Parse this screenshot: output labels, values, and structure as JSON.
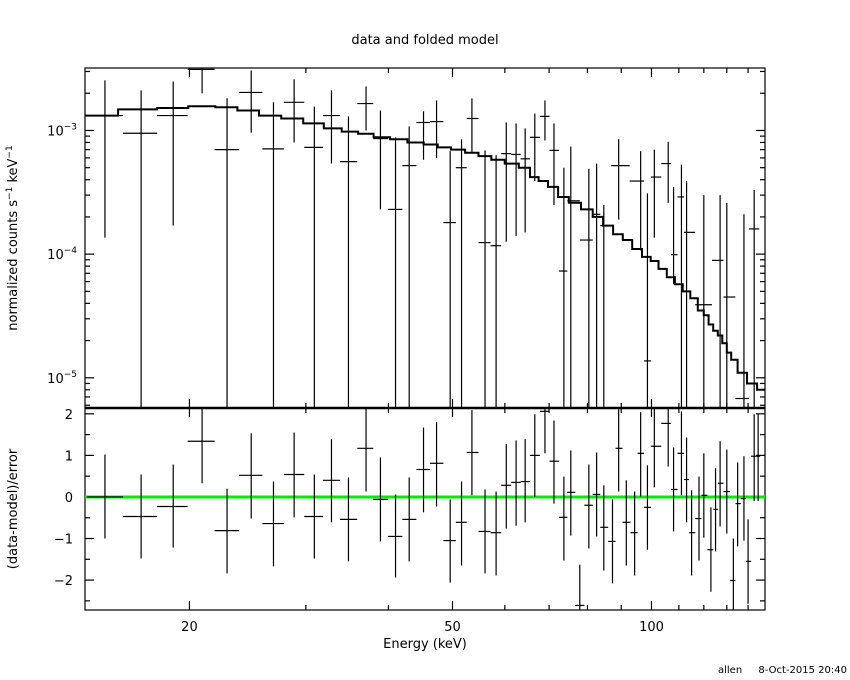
{
  "chart_data": [
    {
      "type": "scatter",
      "panel": "top",
      "title": "data and folded model",
      "ylabel": {
        "base": "normalized counts s",
        "sup1": "−1",
        "mid": " keV",
        "sup2": "−1"
      },
      "xscale": "log",
      "yscale": "log",
      "xlim": [
        13.9,
        148.5
      ],
      "ylim": [
        5.7e-06,
        0.0032
      ],
      "yticks": [
        {
          "base": "10",
          "exp": "−3",
          "value": 0.001
        },
        {
          "base": "10",
          "exp": "−4",
          "value": 0.0001
        },
        {
          "base": "10",
          "exp": "−5",
          "value": 1e-05
        }
      ],
      "data_points": [
        [
          14.9,
          0.00132,
          0.000136,
          0.00254
        ],
        [
          16.9,
          0.00095,
          null,
          0.00211
        ],
        [
          18.9,
          0.00132,
          0.00017,
          0.00249
        ],
        [
          20.9,
          0.00312,
          0.002,
          0.00324
        ],
        [
          22.8,
          0.0007,
          null,
          0.00182
        ],
        [
          24.8,
          0.00203,
          0.00096,
          0.00306
        ],
        [
          26.8,
          0.00071,
          null,
          0.00169
        ],
        [
          28.8,
          0.00169,
          0.0008,
          0.00259
        ],
        [
          30.9,
          0.00073,
          null,
          0.00156
        ],
        [
          32.8,
          0.00132,
          0.00054,
          0.00211
        ],
        [
          34.8,
          0.00056,
          null,
          0.0013
        ],
        [
          37.0,
          0.00165,
          0.001,
          0.00227
        ],
        [
          38.9,
          0.00086,
          0.00023,
          0.00145
        ],
        [
          41.0,
          0.00023,
          null,
          0.00088
        ],
        [
          43.0,
          0.00052,
          null,
          0.00108
        ],
        [
          45.2,
          0.00116,
          0.00058,
          0.00143
        ],
        [
          47.3,
          0.00118,
          0.0006,
          0.00175
        ],
        [
          49.6,
          0.00018,
          null,
          0.00068
        ],
        [
          51.6,
          0.0005,
          null,
          0.00085
        ],
        [
          53.5,
          0.00125,
          0.00065,
          0.00182
        ],
        [
          56.0,
          0.000124,
          null,
          0.00069
        ],
        [
          58.2,
          0.000117,
          null,
          0.00063
        ],
        [
          60.3,
          0.00065,
          0.000126,
          0.00116
        ],
        [
          62.4,
          0.00064,
          0.00014,
          0.00114
        ],
        [
          64.4,
          0.00059,
          0.00015,
          0.00104
        ],
        [
          66.6,
          0.00088,
          0.00039,
          0.00137
        ],
        [
          69.0,
          0.0013,
          0.00083,
          0.00175
        ],
        [
          71.2,
          0.00069,
          0.00025,
          0.00114
        ],
        [
          73.7,
          7.3e-05,
          null,
          0.0005
        ],
        [
          75.5,
          0.00027,
          null,
          0.00074
        ],
        [
          80.4,
          0.00013,
          null,
          0.00049
        ],
        [
          82.6,
          0.00021,
          null,
          0.00054
        ],
        [
          84.7,
          0.00017,
          null,
          0.00025
        ],
        [
          89.2,
          0.00052,
          0.00019,
          0.00085
        ],
        [
          96.3,
          0.00039,
          0.000107,
          0.00068
        ],
        [
          98.6,
          1.37e-05,
          null,
          0.00031
        ],
        [
          101,
          0.00042,
          0.000136,
          0.0007
        ],
        [
          106,
          0.00054,
          0.00026,
          0.00081
        ],
        [
          108,
          9.9e-05,
          5.7e-05,
          0.00035
        ],
        [
          111,
          0.00029,
          null,
          0.00053
        ],
        [
          113,
          0.00015,
          null,
          0.00039
        ],
        [
          120,
          3.9e-05,
          null,
          0.0003
        ],
        [
          127,
          8.9e-05,
          null,
          0.0003
        ],
        [
          130,
          4.5e-05,
          null,
          0.00026
        ],
        [
          138,
          6.8e-06,
          null,
          0.00021
        ],
        [
          143,
          0.00016,
          null,
          0.00033
        ]
      ],
      "model": [
        [
          14.4,
          0.00132
        ],
        [
          16.9,
          0.00148
        ],
        [
          18.9,
          0.00152
        ],
        [
          21,
          0.00157
        ],
        [
          22.8,
          0.00154
        ],
        [
          24.5,
          0.00145
        ],
        [
          26.5,
          0.00132
        ],
        [
          28.6,
          0.00125
        ],
        [
          30.9,
          0.00114
        ],
        [
          33,
          0.00104
        ],
        [
          35,
          0.00098
        ],
        [
          37,
          0.00094
        ],
        [
          39,
          0.00088
        ],
        [
          41.5,
          0.00085
        ],
        [
          44,
          0.0008
        ],
        [
          46.5,
          0.00077
        ],
        [
          48.5,
          0.00073
        ],
        [
          51,
          0.0007
        ],
        [
          53.5,
          0.00066
        ],
        [
          56,
          0.00062
        ],
        [
          58.5,
          0.00058
        ],
        [
          61.5,
          0.00054
        ],
        [
          64.5,
          0.0005
        ],
        [
          66.5,
          0.00042
        ],
        [
          68.5,
          0.00039
        ],
        [
          71,
          0.00035
        ],
        [
          73.5,
          0.00029
        ],
        [
          76.5,
          0.00026
        ],
        [
          80,
          0.00023
        ],
        [
          83,
          0.0002
        ],
        [
          86,
          0.00017
        ],
        [
          89,
          0.000145
        ],
        [
          92,
          0.00013
        ],
        [
          95,
          0.00011
        ],
        [
          98.5,
          9.5e-05
        ],
        [
          101,
          8.8e-05
        ],
        [
          104,
          7.6e-05
        ],
        [
          107,
          6.5e-05
        ],
        [
          110,
          5.7e-05
        ],
        [
          113,
          5e-05
        ],
        [
          116,
          4.4e-05
        ],
        [
          119,
          3.5e-05
        ],
        [
          121,
          3.2e-05
        ],
        [
          123,
          2.7e-05
        ],
        [
          125,
          2.4e-05
        ],
        [
          127,
          2.2e-05
        ],
        [
          129,
          1.9e-05
        ],
        [
          131,
          1.6e-05
        ],
        [
          133,
          1.4e-05
        ],
        [
          137,
          1.1e-05
        ],
        [
          142,
          9e-06
        ],
        [
          147,
          8e-06
        ]
      ]
    },
    {
      "type": "scatter",
      "panel": "bottom",
      "ylabel": "(data-model)/error",
      "xlabel": "Energy (keV)",
      "xscale": "log",
      "xlim": [
        13.9,
        148.5
      ],
      "ylim": [
        -2.72,
        2.14
      ],
      "xticks": [
        {
          "label": "20",
          "value": 20
        },
        {
          "label": "50",
          "value": 50
        },
        {
          "label": "100",
          "value": 100
        }
      ],
      "yticks": [
        {
          "label": "2",
          "value": 2
        },
        {
          "label": "1",
          "value": 1
        },
        {
          "label": "0",
          "value": 0
        },
        {
          "label": "−1",
          "value": -1
        },
        {
          "label": "−2",
          "value": -2
        }
      ],
      "zero_line_color": "#00ee00",
      "residuals": [
        [
          14.9,
          0.0,
          -1.0,
          1.02
        ],
        [
          16.9,
          -0.47,
          -1.48,
          0.54
        ],
        [
          18.9,
          -0.23,
          -1.22,
          0.78
        ],
        [
          20.9,
          1.34,
          0.33,
          2.16
        ],
        [
          22.8,
          -0.81,
          -1.84,
          0.2
        ],
        [
          24.8,
          0.52,
          -0.52,
          1.53
        ],
        [
          26.8,
          -0.64,
          -1.67,
          0.37
        ],
        [
          28.8,
          0.54,
          -0.49,
          1.55
        ],
        [
          30.9,
          -0.47,
          -1.48,
          0.54
        ],
        [
          32.8,
          0.4,
          -0.61,
          1.39
        ],
        [
          34.8,
          -0.54,
          -1.55,
          0.47
        ],
        [
          37.0,
          1.17,
          0.13,
          2.16
        ],
        [
          38.9,
          -0.06,
          -1.07,
          0.95
        ],
        [
          41.0,
          -0.95,
          -1.94,
          0.06
        ],
        [
          43.0,
          -0.54,
          -1.55,
          0.47
        ],
        [
          45.2,
          0.66,
          -0.37,
          1.67
        ],
        [
          47.3,
          0.81,
          -0.23,
          1.8
        ],
        [
          49.6,
          -1.05,
          -2.06,
          -0.06
        ],
        [
          51.6,
          -0.61,
          -1.65,
          0.37
        ],
        [
          53.5,
          1.07,
          0.04,
          2.09
        ],
        [
          56.0,
          -0.83,
          -1.84,
          0.18
        ],
        [
          58.2,
          -0.86,
          -1.89,
          0.13
        ],
        [
          60.3,
          0.28,
          -0.76,
          1.27
        ],
        [
          62.4,
          0.35,
          -0.69,
          1.36
        ],
        [
          64.4,
          0.37,
          -0.61,
          1.39
        ],
        [
          66.6,
          1.0,
          0.0,
          1.99
        ],
        [
          69.0,
          2.06,
          1.05,
          2.14
        ],
        [
          71.2,
          0.86,
          -0.16,
          1.84
        ],
        [
          73.7,
          -0.49,
          -1.53,
          0.49
        ],
        [
          75.5,
          0.11,
          -0.93,
          1.12
        ],
        [
          77.9,
          -2.61,
          -2.72,
          -1.63
        ],
        [
          80.4,
          -0.2,
          -1.24,
          0.78
        ],
        [
          82.6,
          0.06,
          -0.95,
          1.07
        ],
        [
          84.7,
          -0.73,
          -1.77,
          0.28
        ],
        [
          87.3,
          -1.07,
          -2.08,
          -0.06
        ],
        [
          89.2,
          1.17,
          0.13,
          2.11
        ],
        [
          91.6,
          -0.61,
          -1.65,
          0.4
        ],
        [
          94.3,
          -0.86,
          -1.89,
          0.13
        ],
        [
          96.3,
          1.05,
          0.01,
          2.04
        ],
        [
          98.6,
          -0.25,
          -1.27,
          0.76
        ],
        [
          101,
          1.22,
          0.23,
          2.14
        ],
        [
          106,
          1.77,
          0.73,
          2.14
        ],
        [
          108,
          0.18,
          -0.83,
          1.19
        ],
        [
          111,
          1.05,
          0.04,
          2.06
        ],
        [
          113,
          0.42,
          -0.61,
          1.43
        ],
        [
          115,
          -0.86,
          -1.89,
          0.16
        ],
        [
          118,
          -0.52,
          -1.53,
          0.49
        ],
        [
          120,
          0.04,
          -0.98,
          1.05
        ],
        [
          123,
          -1.27,
          -2.28,
          -0.25
        ],
        [
          125,
          -0.3,
          -1.31,
          0.69
        ],
        [
          127,
          0.33,
          -0.71,
          1.34
        ],
        [
          130,
          0.13,
          -0.88,
          1.14
        ],
        [
          133,
          -2.01,
          -2.72,
          -1.0
        ],
        [
          135,
          -0.16,
          -1.19,
          0.83
        ],
        [
          138,
          -0.04,
          -1.05,
          0.98
        ],
        [
          140,
          -1.55,
          -2.57,
          -0.54
        ],
        [
          143,
          0.98,
          -0.1,
          1.99
        ],
        [
          145,
          0.98,
          -0.1,
          2.0
        ]
      ]
    }
  ],
  "footer": {
    "user": "allen",
    "timestamp": "8-Oct-2015 20:40"
  }
}
